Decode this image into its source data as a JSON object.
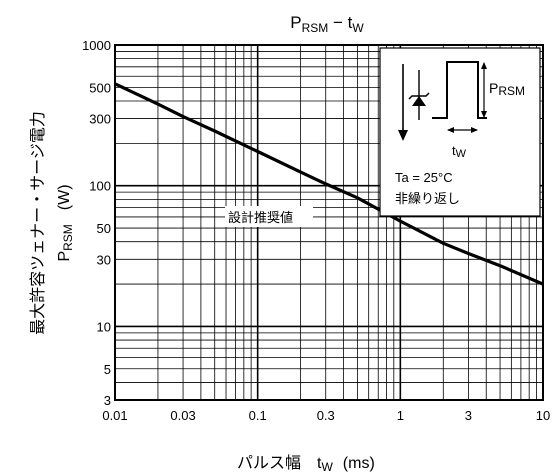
{
  "chart_data": {
    "type": "line",
    "title": {
      "main": "P",
      "sub": "RSM",
      "dash": " − t",
      "sub2": "W"
    },
    "xlabel": {
      "text": "パルス幅　t",
      "sub": "W",
      "unit": "(ms)"
    },
    "ylabel": {
      "line1": "最大許容ツェナー・サージ電力",
      "main": "P",
      "sub": "RSM",
      "unit": "(W)"
    },
    "x_scale": "log",
    "y_scale": "log",
    "xlim": [
      0.01,
      10
    ],
    "ylim": [
      3,
      1000
    ],
    "x_ticks": [
      {
        "value": 0.01,
        "label": "0.01"
      },
      {
        "value": 0.03,
        "label": "0.03"
      },
      {
        "value": 0.1,
        "label": "0.1"
      },
      {
        "value": 0.3,
        "label": "0.3"
      },
      {
        "value": 1,
        "label": "1"
      },
      {
        "value": 3,
        "label": "3"
      },
      {
        "value": 10,
        "label": "10"
      }
    ],
    "y_ticks": [
      {
        "value": 3,
        "label": "3"
      },
      {
        "value": 5,
        "label": "5"
      },
      {
        "value": 10,
        "label": "10"
      },
      {
        "value": 30,
        "label": "30"
      },
      {
        "value": 50,
        "label": "50"
      },
      {
        "value": 100,
        "label": "100"
      },
      {
        "value": 300,
        "label": "300"
      },
      {
        "value": 500,
        "label": "500"
      },
      {
        "value": 1000,
        "label": "1000"
      }
    ],
    "grid": true,
    "series": [
      {
        "label": "設計推奨値",
        "x": [
          0.01,
          0.02,
          0.03,
          0.05,
          0.1,
          0.2,
          0.3,
          0.5,
          1,
          2,
          3,
          5,
          10
        ],
        "y": [
          530,
          380,
          310,
          245,
          175,
          125,
          103,
          82,
          56,
          39,
          33,
          27,
          20
        ]
      }
    ],
    "inset": {
      "ppulse_label": {
        "main": "P",
        "sub": "RSM"
      },
      "tw_label": {
        "main": "t",
        "sub": "W"
      },
      "conditions": [
        "Ta = 25°C",
        "非繰り返し"
      ]
    }
  }
}
